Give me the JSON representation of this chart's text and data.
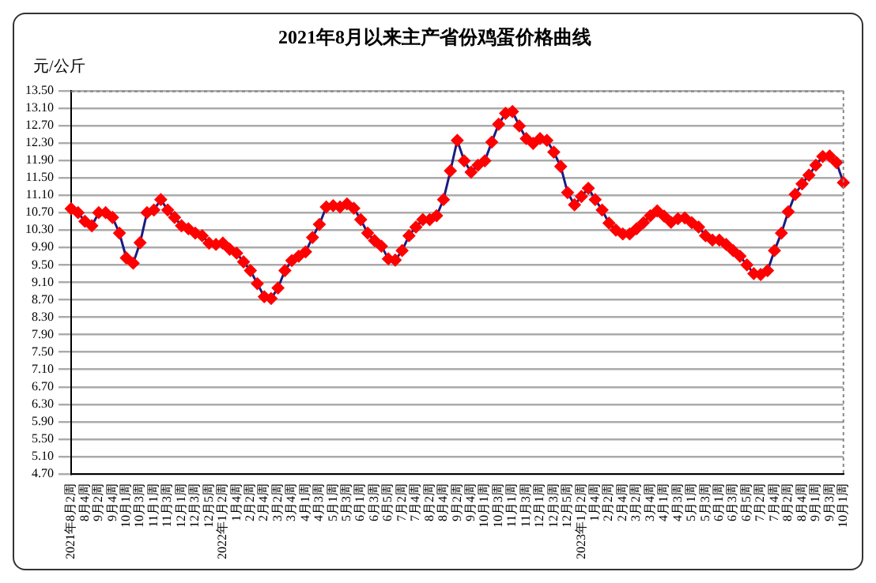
{
  "chart_data": {
    "type": "line",
    "title": "2021年8月以来主产省份鸡蛋价格曲线",
    "ylabel": "元/公斤",
    "categories": [
      "2021年8月2周",
      null,
      "8月4周",
      null,
      "9月2周",
      null,
      "9月4周",
      null,
      "10月1周",
      null,
      "10月3周",
      null,
      "11月1周",
      null,
      "11月3周",
      null,
      "12月1周",
      null,
      "12月3周",
      null,
      "12月5周",
      null,
      "2022年1月2周",
      null,
      "1月4周",
      null,
      "2月2周",
      null,
      "2月4周",
      null,
      "3月2周",
      null,
      "3月4周",
      null,
      "4月1周",
      null,
      "4月3周",
      null,
      "5月1周",
      null,
      "5月3周",
      null,
      "6月1周",
      null,
      "6月3周",
      null,
      "6月5周",
      null,
      "7月2周",
      null,
      "7月4周",
      null,
      "8月2周",
      null,
      "8月4周",
      null,
      "9月2周",
      null,
      "9月4周",
      null,
      "10月1周",
      null,
      "10月3周",
      null,
      "11月1周",
      null,
      "11月3周",
      null,
      "12月1周",
      null,
      "12月3周",
      null,
      "12月5周",
      null,
      "2023年1月2周",
      null,
      "1月4周",
      null,
      "2月2周",
      null,
      "2月4周",
      null,
      "3月2周",
      null,
      "3月4周",
      null,
      "4月1周",
      null,
      "4月3周",
      null,
      "5月1周",
      null,
      "5月3周",
      null,
      "6月1周",
      null,
      "6月3周",
      null,
      "6月5周",
      null,
      "7月2周",
      null,
      "7月4周",
      null,
      "8月2周",
      null,
      "8月4周",
      null,
      "9月1周",
      null,
      "9月3周",
      null,
      "10月1周"
    ],
    "series": [
      {
        "color": "#1c1c80",
        "values": [
          10.79,
          10.7,
          10.5,
          10.4,
          10.7,
          10.7,
          10.59,
          10.23,
          9.66,
          9.54,
          10.01,
          10.7,
          10.76,
          11.0,
          10.76,
          10.59,
          10.4,
          10.33,
          10.23,
          10.17,
          10.0,
          9.97,
          10.0,
          9.86,
          9.77,
          9.57,
          9.37,
          9.07,
          8.77,
          8.73,
          8.97,
          9.37,
          9.6,
          9.7,
          9.8,
          10.13,
          10.43,
          10.83,
          10.86,
          10.83,
          10.9,
          10.8,
          10.54,
          10.23,
          10.06,
          9.93,
          9.64,
          9.61,
          9.83,
          10.17,
          10.37,
          10.54,
          10.54,
          10.63,
          11.0,
          11.66,
          12.36,
          11.89,
          11.63,
          11.79,
          11.89,
          12.32,
          12.73,
          12.98,
          13.02,
          12.69,
          12.4,
          12.29,
          12.4,
          12.36,
          12.09,
          11.76,
          11.16,
          10.88,
          11.07,
          11.26,
          11.0,
          10.76,
          10.46,
          10.3,
          10.21,
          10.21,
          10.33,
          10.47,
          10.63,
          10.74,
          10.62,
          10.48,
          10.56,
          10.58,
          10.47,
          10.37,
          10.17,
          10.07,
          10.07,
          9.97,
          9.83,
          9.7,
          9.5,
          9.3,
          9.28,
          9.37,
          9.83,
          10.23,
          10.72,
          11.12,
          11.36,
          11.56,
          11.79,
          11.99,
          12.0,
          11.85,
          11.39
        ]
      }
    ],
    "ylim": [
      4.7,
      13.5
    ],
    "yticks": [
      {
        "value": 4.7,
        "label": "4.70"
      },
      {
        "value": 5.1,
        "label": "5.10"
      },
      {
        "value": 5.5,
        "label": "5.50"
      },
      {
        "value": 5.9,
        "label": "5.90"
      },
      {
        "value": 6.3,
        "label": "6.30"
      },
      {
        "value": 6.7,
        "label": "6.70"
      },
      {
        "value": 7.1,
        "label": "7.10"
      },
      {
        "value": 7.5,
        "label": "7.50"
      },
      {
        "value": 7.9,
        "label": "7.90"
      },
      {
        "value": 8.3,
        "label": "8.30"
      },
      {
        "value": 8.7,
        "label": "8.70"
      },
      {
        "value": 9.1,
        "label": "9.10"
      },
      {
        "value": 9.5,
        "label": "9.50"
      },
      {
        "value": 9.9,
        "label": "9.90"
      },
      {
        "value": 10.3,
        "label": "10.30"
      },
      {
        "value": 10.7,
        "label": "10.70"
      },
      {
        "value": 11.1,
        "label": "11.10"
      },
      {
        "value": 11.5,
        "label": "11.50"
      },
      {
        "value": 11.9,
        "label": "11.90"
      },
      {
        "value": 12.3,
        "label": "12.30"
      },
      {
        "value": 12.7,
        "label": "12.70"
      },
      {
        "value": 13.1,
        "label": "13.10"
      },
      {
        "value": 13.5,
        "label": "13.50"
      }
    ],
    "grid": "y",
    "legend": false,
    "marker": "diamond",
    "line_style": "solid"
  }
}
